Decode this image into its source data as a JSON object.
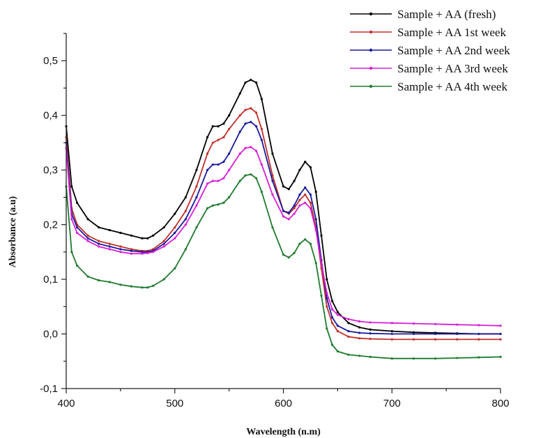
{
  "chart_data": {
    "type": "line",
    "title": "",
    "xlabel": "Wavelength (n.m)",
    "ylabel": "Absorbance (a.u)",
    "xlim": [
      400,
      800
    ],
    "ylim": [
      -0.1,
      0.55
    ],
    "x_ticks": [
      400,
      500,
      600,
      700,
      800
    ],
    "x_tick_labels": [
      "400",
      "500",
      "600",
      "700",
      "800"
    ],
    "y_ticks": [
      -0.1,
      0.0,
      0.1,
      0.2,
      0.3,
      0.4,
      0.5
    ],
    "y_tick_labels": [
      "-0,1",
      "0,0",
      "0,1",
      "0,2",
      "0,3",
      "0,4",
      "0,5"
    ],
    "grid": false,
    "legend_position": "top-right",
    "series": [
      {
        "name": "Sample + AA (fresh)",
        "color": "#000000",
        "x": [
          400,
          405,
          410,
          420,
          430,
          440,
          450,
          460,
          470,
          475,
          480,
          490,
          500,
          510,
          520,
          530,
          535,
          540,
          545,
          550,
          560,
          565,
          570,
          575,
          580,
          590,
          600,
          605,
          610,
          615,
          620,
          625,
          630,
          635,
          640,
          645,
          650,
          660,
          670,
          680,
          700,
          720,
          740,
          760,
          780,
          800
        ],
        "y": [
          0.38,
          0.27,
          0.24,
          0.21,
          0.195,
          0.19,
          0.185,
          0.18,
          0.175,
          0.175,
          0.18,
          0.195,
          0.22,
          0.25,
          0.3,
          0.36,
          0.38,
          0.38,
          0.385,
          0.4,
          0.44,
          0.46,
          0.465,
          0.46,
          0.43,
          0.33,
          0.27,
          0.265,
          0.28,
          0.3,
          0.315,
          0.305,
          0.26,
          0.18,
          0.1,
          0.06,
          0.04,
          0.02,
          0.012,
          0.008,
          0.005,
          0.003,
          0.002,
          0.001,
          0.0,
          0.0
        ]
      },
      {
        "name": "Sample + AA 1st week",
        "color": "#c0302a",
        "x": [
          400,
          405,
          410,
          420,
          430,
          440,
          450,
          460,
          470,
          475,
          480,
          490,
          500,
          510,
          520,
          530,
          535,
          540,
          545,
          550,
          560,
          565,
          570,
          575,
          580,
          590,
          600,
          605,
          610,
          615,
          620,
          625,
          630,
          635,
          640,
          645,
          650,
          660,
          670,
          680,
          700,
          720,
          740,
          760,
          780,
          800
        ],
        "y": [
          0.36,
          0.23,
          0.2,
          0.18,
          0.17,
          0.165,
          0.16,
          0.155,
          0.152,
          0.152,
          0.155,
          0.17,
          0.195,
          0.225,
          0.27,
          0.33,
          0.35,
          0.355,
          0.36,
          0.375,
          0.4,
          0.41,
          0.413,
          0.405,
          0.375,
          0.29,
          0.225,
          0.22,
          0.23,
          0.245,
          0.255,
          0.24,
          0.195,
          0.12,
          0.05,
          0.02,
          0.005,
          -0.005,
          -0.008,
          -0.009,
          -0.01,
          -0.01,
          -0.01,
          -0.01,
          -0.01,
          -0.01
        ]
      },
      {
        "name": "Sample + AA 2nd week",
        "color": "#1a1a9c",
        "x": [
          400,
          405,
          410,
          420,
          430,
          440,
          450,
          460,
          470,
          475,
          480,
          490,
          500,
          510,
          520,
          530,
          535,
          540,
          545,
          550,
          560,
          565,
          570,
          575,
          580,
          590,
          600,
          605,
          610,
          615,
          620,
          625,
          630,
          635,
          640,
          645,
          650,
          660,
          670,
          680,
          700,
          720,
          740,
          760,
          780,
          800
        ],
        "y": [
          0.35,
          0.22,
          0.195,
          0.175,
          0.165,
          0.16,
          0.155,
          0.152,
          0.15,
          0.15,
          0.152,
          0.165,
          0.185,
          0.21,
          0.25,
          0.3,
          0.31,
          0.31,
          0.315,
          0.33,
          0.37,
          0.385,
          0.388,
          0.38,
          0.355,
          0.28,
          0.225,
          0.222,
          0.235,
          0.255,
          0.268,
          0.255,
          0.21,
          0.135,
          0.065,
          0.03,
          0.015,
          0.005,
          0.002,
          0.001,
          0.0,
          0.0,
          0.0,
          0.0,
          0.0,
          0.0
        ]
      },
      {
        "name": "Sample + AA 3rd week",
        "color": "#d61ed6",
        "x": [
          400,
          405,
          410,
          420,
          430,
          440,
          450,
          460,
          470,
          475,
          480,
          490,
          500,
          510,
          520,
          530,
          535,
          540,
          545,
          550,
          560,
          565,
          570,
          575,
          580,
          590,
          600,
          605,
          610,
          615,
          620,
          625,
          630,
          635,
          640,
          645,
          650,
          660,
          670,
          680,
          700,
          720,
          740,
          760,
          780,
          800
        ],
        "y": [
          0.34,
          0.21,
          0.185,
          0.17,
          0.16,
          0.155,
          0.15,
          0.147,
          0.147,
          0.148,
          0.15,
          0.16,
          0.175,
          0.2,
          0.235,
          0.275,
          0.28,
          0.28,
          0.285,
          0.3,
          0.33,
          0.34,
          0.342,
          0.335,
          0.31,
          0.255,
          0.215,
          0.21,
          0.22,
          0.235,
          0.24,
          0.23,
          0.19,
          0.13,
          0.075,
          0.045,
          0.035,
          0.027,
          0.023,
          0.021,
          0.02,
          0.019,
          0.018,
          0.017,
          0.016,
          0.015
        ]
      },
      {
        "name": "Sample + AA 4th week",
        "color": "#1e7a2e",
        "x": [
          400,
          405,
          410,
          420,
          430,
          440,
          450,
          460,
          470,
          475,
          480,
          490,
          500,
          510,
          520,
          530,
          535,
          540,
          545,
          550,
          560,
          565,
          570,
          575,
          580,
          590,
          600,
          605,
          610,
          615,
          620,
          625,
          630,
          635,
          640,
          645,
          650,
          660,
          670,
          680,
          700,
          720,
          740,
          760,
          780,
          800
        ],
        "y": [
          0.27,
          0.15,
          0.125,
          0.105,
          0.098,
          0.095,
          0.09,
          0.087,
          0.085,
          0.085,
          0.088,
          0.1,
          0.12,
          0.155,
          0.195,
          0.23,
          0.235,
          0.237,
          0.24,
          0.25,
          0.28,
          0.29,
          0.292,
          0.285,
          0.26,
          0.195,
          0.145,
          0.14,
          0.148,
          0.165,
          0.173,
          0.165,
          0.13,
          0.07,
          0.01,
          -0.02,
          -0.032,
          -0.038,
          -0.04,
          -0.042,
          -0.045,
          -0.045,
          -0.045,
          -0.044,
          -0.043,
          -0.042
        ]
      }
    ]
  }
}
